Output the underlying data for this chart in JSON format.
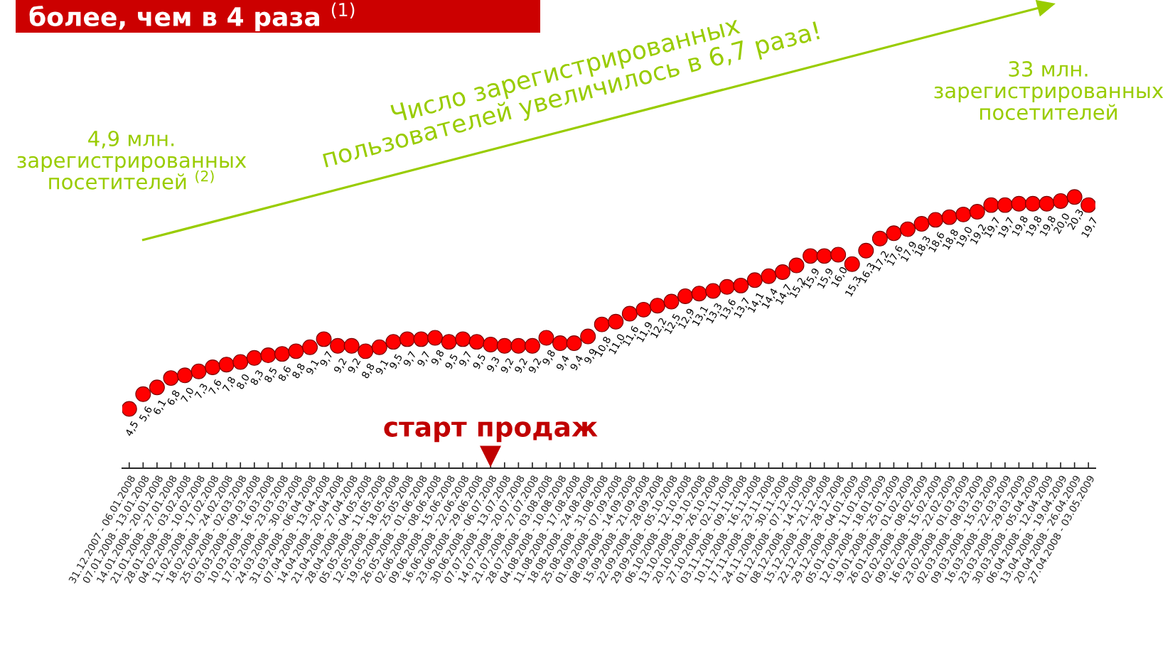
{
  "chart_data": {
    "type": "scatter",
    "title": "более, чем в 4 раза $^{(1)}$",
    "categories": [
      "31.12.2007 - 06.01.2008",
      "07.01.2008 - 13.01.2008",
      "14.01.2008 - 20.01.2008",
      "21.01.2008 - 27.01.2008",
      "28.01.2008 - 03.02.2008",
      "04.02.2008 - 10.02.2008",
      "11.02.2008 - 17.02.2008",
      "18.02.2008 - 24.02.2008",
      "25.02.2008 - 02.03.2008",
      "03.03.2008 - 09.03.2008",
      "10.03.2008 - 16.03.2008",
      "17.03.2008 - 23.03.2008",
      "24.03.2008 - 30.03.2008",
      "31.03.2008 - 06.04.2008",
      "07.04.2008 - 13.04.2008",
      "14.04.2008 - 20.04.2008",
      "21.04.2008 - 27.04.2008",
      "28.04.2008 - 04.05.2008",
      "05.05.2008 - 11.05.2008",
      "12.05.2008 - 18.05.2008",
      "19.05.2008 - 25.05.2008",
      "26.05.2008 - 01.06.2008",
      "02.06.2008 - 08.06.2008",
      "09.06.2008 - 15.06.2008",
      "16.06.2008 - 22.06.2008",
      "23.06.2008 - 29.06.2008",
      "30.06.2008 - 06.07.2008",
      "07.07.2008 - 13.07.2008",
      "14.07.2008 - 20.07.2008",
      "21.07.2008 - 27.07.2008",
      "28.07.2008 - 03.08.2008",
      "04.08.2008 - 10.08.2008",
      "11.08.2008 - 17.08.2008",
      "18.08.2008 - 24.08.2008",
      "25.08.2008 - 31.08.2008",
      "01.09.2008 - 07.09.2008",
      "08.09.2008 - 14.09.2008",
      "15.09.2008 - 21.09.2008",
      "22.09.2008 - 28.09.2008",
      "29.09.2008 - 05.10.2008",
      "06.10.2008 - 12.10.2008",
      "13.10.2008 - 19.10.2008",
      "20.10.2008 - 26.10.2008",
      "27.10.2008 - 02.11.2008",
      "03.11.2008 - 09.11.2008",
      "10.11.2008 - 16.11.2008",
      "17.11.2008 - 23.11.2008",
      "24.11.2008 - 30.11.2008",
      "01.12.2008 - 07.12.2008",
      "08.12.2008 - 14.12.2008",
      "15.12.2008 - 21.12.2008",
      "22.12.2008 - 28.12.2008",
      "29.12.2008 - 04.01.2009",
      "05.01.2008 - 11.01.2009",
      "12.01.2008 - 18.01.2009",
      "19.01.2008 - 25.01.2009",
      "26.01.2008 - 01.02.2009",
      "02.02.2008 - 08.02.2009",
      "09.02.2008 - 15.02.2009",
      "16.02.2008 - 22.02.2009",
      "23.02.2008 - 01.03.2009",
      "02.03.2008 - 08.03.2009",
      "09.03.2008 - 15.03.2009",
      "16.03.2008 - 22.03.2009",
      "23.03.2008 - 29.03.2009",
      "30.03.2008 - 05.04.2009",
      "06.04.2008 - 12.04.2009",
      "13.04.2008 - 19.04.2009",
      "20.04.2008 - 26.04.2009",
      "27.04.2008 - 03.05.2009"
    ],
    "series": [
      {
        "color": "#ff0000",
        "values": [
          4.5,
          5.6,
          6.1,
          6.8,
          7.0,
          7.3,
          7.6,
          7.8,
          8.0,
          8.3,
          8.5,
          8.6,
          8.8,
          9.1,
          9.7,
          9.2,
          9.2,
          8.8,
          9.1,
          9.5,
          9.7,
          9.7,
          9.8,
          9.5,
          9.7,
          9.5,
          9.3,
          9.2,
          9.2,
          9.2,
          9.8,
          9.4,
          9.4,
          9.9,
          10.8,
          11.0,
          11.6,
          11.9,
          12.2,
          12.5,
          12.9,
          13.1,
          13.3,
          13.6,
          13.7,
          14.1,
          14.4,
          14.7,
          15.2,
          15.9,
          15.9,
          16.0,
          15.3,
          16.3,
          17.2,
          17.6,
          17.9,
          18.3,
          18.6,
          18.8,
          19.0,
          19.2,
          19.7,
          19.7,
          19.8,
          19.8,
          19.8,
          20.0,
          20.3,
          19.7
        ],
        "value_labels": [
          "4,5",
          "5,6",
          "6,1",
          "6,8",
          "7,0",
          "7,3",
          "7,6",
          "7,8",
          "8,0",
          "8,3",
          "8,5",
          "8,6",
          "8,8",
          "9,1",
          "9,7",
          "9,2",
          "9,2",
          "8,8",
          "9,1",
          "9,5",
          "9,7",
          "9,7",
          "9,8",
          "9,5",
          "9,7",
          "9,5",
          "9,3",
          "9,2",
          "9,2",
          "9,2",
          "9,8",
          "9,4",
          "9,4",
          "9,9",
          "10,8",
          "11,0",
          "11,6",
          "11,9",
          "12,2",
          "12,5",
          "12,9",
          "13,1",
          "13,3",
          "13,6",
          "13,7",
          "14,1",
          "14,4",
          "14,7",
          "15,2",
          "15,9",
          "15,9",
          "16,0",
          "15,3",
          "16,3",
          "17,2",
          "17,6",
          "17,9",
          "18,3",
          "18,6",
          "18,8",
          "19,0",
          "19,2",
          "19,7",
          "19,7",
          "19,8",
          "19,8",
          "19,8",
          "20,0",
          "20,3",
          "19,7"
        ]
      }
    ],
    "tick_labels": "x",
    "marker": "circle",
    "grid": false,
    "legend": false,
    "annotations": [
      "4,9 млн.\nзарегистрированных\nпосетителей $^{(2)}$",
      "33 млн.\nзарегистрированных\nпосетителей",
      "Число зарегистрированных\nпользователей увеличилось в 6,7 раза!",
      "старт продаж"
    ]
  }
}
